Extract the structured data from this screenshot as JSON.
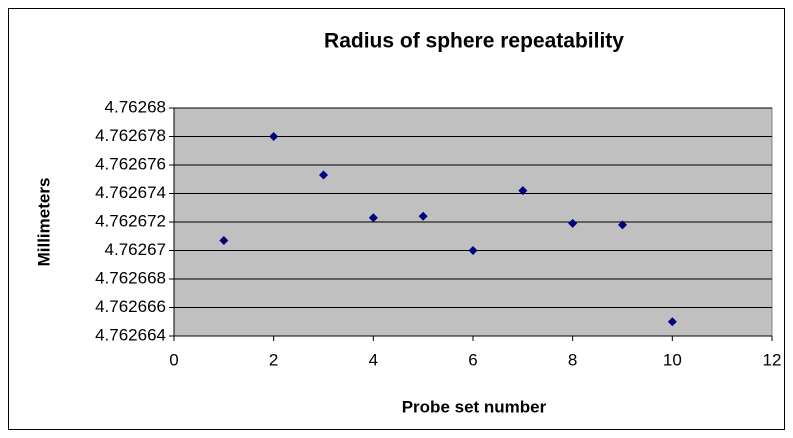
{
  "chart_data": {
    "type": "scatter",
    "title": "Radius of sphere repeatability",
    "x_label": "Probe set number",
    "y_label": "Millimeters",
    "x": [
      1,
      2,
      3,
      4,
      5,
      6,
      7,
      8,
      9,
      10
    ],
    "values": [
      4.7626707,
      4.762678,
      4.7626753,
      4.7626723,
      4.7626724,
      4.76267,
      4.7626742,
      4.7626719,
      4.7626718,
      4.762665
    ],
    "color": "#000080",
    "xlim": [
      0,
      12
    ],
    "xticks": [
      0,
      2,
      4,
      6,
      8,
      10,
      12
    ],
    "ylim": [
      4.762664,
      4.76268
    ],
    "yticks": [
      4.762664,
      4.762666,
      4.762668,
      4.76267,
      4.762672,
      4.762674,
      4.762676,
      4.762678,
      4.76268
    ],
    "grid": true
  }
}
